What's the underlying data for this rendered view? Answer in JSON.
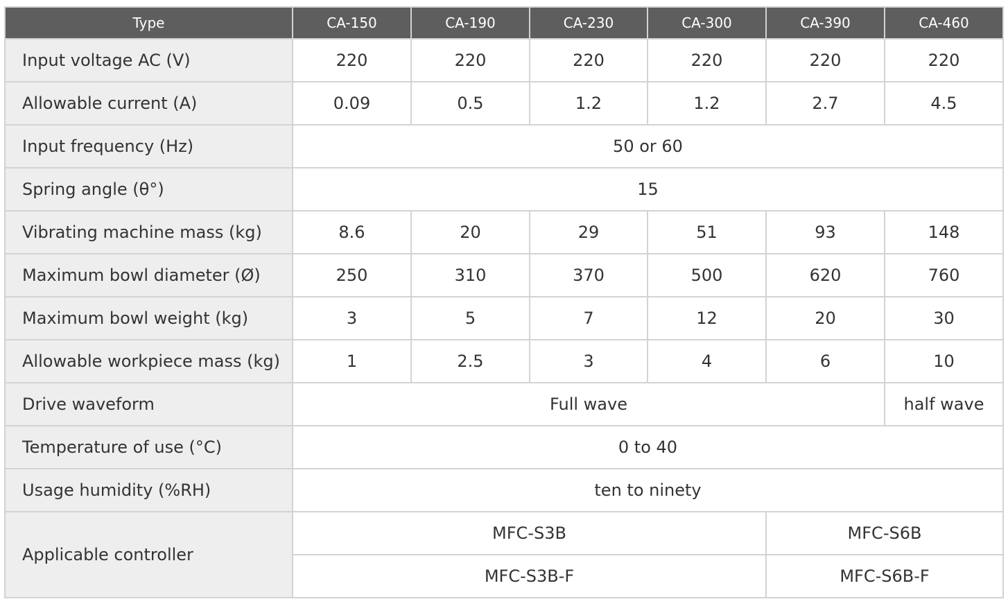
{
  "columns": [
    "Type",
    "CA-150",
    "CA-190",
    "CA-230",
    "CA-300",
    "CA-390",
    "CA-460"
  ],
  "rows": {
    "input_voltage": {
      "label": "Input voltage AC (V)",
      "values": [
        "220",
        "220",
        "220",
        "220",
        "220",
        "220"
      ]
    },
    "allowable_current": {
      "label": "Allowable current (A)",
      "values": [
        "0.09",
        "0.5",
        "1.2",
        "1.2",
        "2.7",
        "4.5"
      ]
    },
    "input_frequency": {
      "label": "Input frequency (Hz)",
      "value": "50 or 60"
    },
    "spring_angle": {
      "label": "Spring angle (θ°)",
      "value": "15"
    },
    "machine_mass": {
      "label": "Vibrating machine mass (kg)",
      "values": [
        "8.6",
        "20",
        "29",
        "51",
        "93",
        "148"
      ]
    },
    "bowl_diameter": {
      "label": "Maximum bowl diameter (Ø)",
      "values": [
        "250",
        "310",
        "370",
        "500",
        "620",
        "760"
      ]
    },
    "bowl_weight": {
      "label": "Maximum bowl weight (kg)",
      "values": [
        "3",
        "5",
        "7",
        "12",
        "20",
        "30"
      ]
    },
    "workpiece_mass": {
      "label": "Allowable workpiece mass (kg)",
      "values": [
        "1",
        "2.5",
        "3",
        "4",
        "6",
        "10"
      ]
    },
    "drive_waveform": {
      "label": "Drive waveform",
      "full": "Full wave",
      "half": "half wave"
    },
    "temperature": {
      "label": "Temperature of use (°C)",
      "value": "0 to 40"
    },
    "humidity": {
      "label": "Usage humidity (%RH)",
      "value": "ten to ninety"
    },
    "controller": {
      "label": "Applicable controller",
      "a1": "MFC-S3B",
      "a2": "MFC-S3B-F",
      "b1": "MFC-S6B",
      "b2": "MFC-S6B-F"
    }
  },
  "colors": {
    "header_bg": "#5e5e5e",
    "label_bg": "#eeeeee",
    "border": "#d3d3d3",
    "text": "#333333"
  }
}
